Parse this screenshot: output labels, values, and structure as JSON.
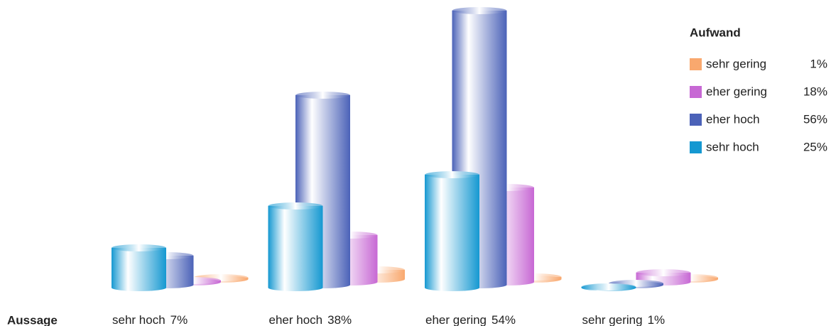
{
  "chart_data": {
    "type": "bar3d",
    "x_label": "Aussage",
    "legend_title": "Aufwand",
    "categories": [
      "sehr hoch",
      "eher hoch",
      "eher gering",
      "sehr gering"
    ],
    "category_shares": [
      7,
      38,
      54,
      1
    ],
    "category_share_labels": [
      "7%",
      "38%",
      "54%",
      "1%"
    ],
    "series": [
      {
        "name": "sehr gering",
        "color": "#f9a86e",
        "share": 1,
        "share_label": "1%",
        "values": [
          2,
          13,
          3,
          2
        ]
      },
      {
        "name": "eher gering",
        "color": "#c768d4",
        "share": 18,
        "share_label": "18%",
        "values": [
          2,
          66,
          133,
          13
        ]
      },
      {
        "name": "eher hoch",
        "color": "#4b62b8",
        "share": 56,
        "share_label": "56%",
        "values": [
          41,
          267,
          386,
          2
        ]
      },
      {
        "name": "sehr hoch",
        "color": "#1598d1",
        "share": 25,
        "share_label": "25%",
        "values": [
          56,
          115,
          159,
          1
        ]
      }
    ]
  }
}
